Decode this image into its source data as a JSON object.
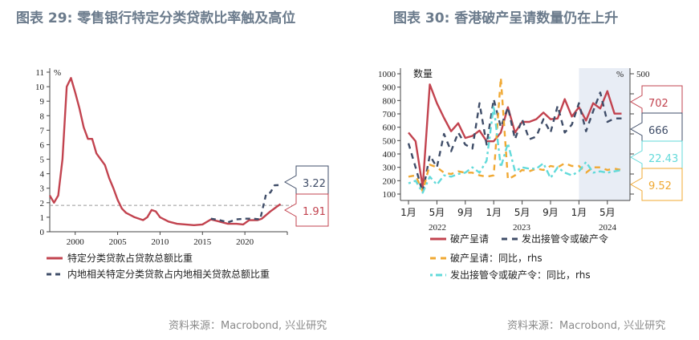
{
  "left": {
    "title": "图表 29: 零售银行特定分类贷款比率触及高位",
    "source": "资料来源：Macrobond, 兴业研究"
  },
  "right": {
    "title": "图表 30: 香港破产呈请数量仍在上升",
    "source": "资料来源：Macrobond, 兴业研究"
  },
  "colors": {
    "red": "#c2434f",
    "navy": "#3f4d68",
    "orange": "#f0a832",
    "cyan": "#62dada",
    "title": "#6b7b8c"
  },
  "chart_data": [
    {
      "type": "line",
      "ylabel": "%",
      "ylim": [
        0,
        11
      ],
      "xlim": [
        1997,
        2025
      ],
      "yticks": [
        "0",
        "1",
        "2",
        "3",
        "4",
        "5",
        "6",
        "7",
        "8",
        "9",
        "10",
        "11"
      ],
      "xticks": [
        "2000",
        "2005",
        "2010",
        "2015",
        "2020"
      ],
      "reference_line": 1.82,
      "series": [
        {
          "name": "特定分类贷款占贷款总额比重",
          "last_label": "1.91",
          "x": [
            1997,
            1997.5,
            1998,
            1998.5,
            1999,
            1999.5,
            2000,
            2000.5,
            2001,
            2001.5,
            2002,
            2002.5,
            2003,
            2003.5,
            2004,
            2004.5,
            2005,
            2005.5,
            2006,
            2007,
            2008,
            2008.5,
            2009,
            2009.5,
            2010,
            2011,
            2012,
            2013,
            2014,
            2015,
            2016,
            2017,
            2018,
            2019,
            2019.8,
            2020.5,
            2021.5,
            2022,
            2023,
            2023.7,
            2024.2
          ],
          "y": [
            2.5,
            2.0,
            2.5,
            5,
            10,
            10.6,
            9.6,
            8.5,
            7.2,
            6.4,
            6.4,
            5.4,
            5.0,
            4.6,
            3.7,
            3.0,
            2.2,
            1.6,
            1.3,
            1.0,
            0.8,
            1.0,
            1.5,
            1.4,
            1.0,
            0.7,
            0.55,
            0.5,
            0.45,
            0.5,
            0.85,
            0.7,
            0.55,
            0.55,
            0.5,
            0.8,
            0.8,
            0.9,
            1.4,
            1.7,
            1.91
          ]
        },
        {
          "name": "内地相关特定分类贷款占内地相关贷款总额比重",
          "last_label": "3.22",
          "x": [
            2016,
            2017,
            2018,
            2019,
            2020,
            2021,
            2021.8,
            2022.5,
            2023,
            2023.5,
            2024.2
          ],
          "y": [
            0.9,
            0.8,
            0.65,
            0.85,
            0.9,
            0.9,
            0.85,
            2.6,
            2.7,
            3.2,
            3.22
          ]
        }
      ]
    },
    {
      "type": "line",
      "ylabel": "数量",
      "y2label": "%",
      "y2top": "500",
      "ylim": [
        100,
        1000
      ],
      "yticks": [
        "100",
        "200",
        "300",
        "400",
        "500",
        "600",
        "700",
        "800",
        "900",
        "1000"
      ],
      "xticks": [
        "1月",
        "5月",
        "9月",
        "1月",
        "5月",
        "9月",
        "1月",
        "5月"
      ],
      "years": [
        "2022",
        "2023",
        "2024"
      ],
      "shaded_from": "2024-01",
      "series": [
        {
          "name": "破产呈请",
          "axis": "left",
          "last_label": "702",
          "y": [
            560,
            495,
            150,
            920,
            780,
            670,
            570,
            630,
            520,
            535,
            575,
            495,
            495,
            560,
            750,
            560,
            640,
            640,
            660,
            710,
            660,
            665,
            810,
            680,
            750,
            650,
            780,
            740,
            870,
            702,
            702
          ]
        },
        {
          "name": "发出接管令或破产令",
          "axis": "left",
          "last_label": "666",
          "y": [
            480,
            300,
            110,
            390,
            300,
            550,
            420,
            560,
            470,
            440,
            780,
            470,
            810,
            600,
            750,
            510,
            660,
            510,
            530,
            660,
            560,
            760,
            560,
            620,
            780,
            570,
            720,
            860,
            640,
            666,
            666
          ]
        },
        {
          "name": "破产呈请：同比，rhs",
          "axis": "right",
          "last_label": "9.52",
          "y": [
            230,
            240,
            120,
            320,
            300,
            260,
            250,
            270,
            260,
            260,
            240,
            230,
            240,
            970,
            210,
            240,
            280,
            270,
            290,
            280,
            310,
            300,
            330,
            310,
            310,
            260,
            300,
            300,
            280,
            290,
            280
          ]
        },
        {
          "name": "发出接管令或破产令：同比，rhs",
          "axis": "right",
          "last_label": "22.43",
          "y": [
            180,
            200,
            110,
            230,
            170,
            240,
            230,
            250,
            260,
            300,
            260,
            350,
            760,
            300,
            480,
            270,
            300,
            290,
            290,
            330,
            220,
            300,
            260,
            240,
            270,
            340,
            260,
            270,
            260,
            270,
            280
          ]
        }
      ]
    }
  ]
}
